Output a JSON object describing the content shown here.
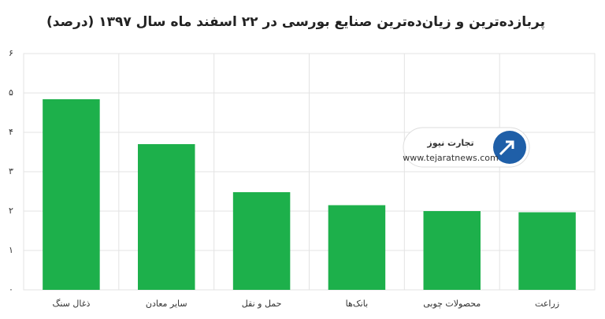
{
  "chart_data": {
    "type": "bar",
    "title": "پربازده‌ترین و زیان‌ده‌ترین صنایع بورسی در ۲۲ اسفند ماه سال ۱۳۹۷ (درصد)",
    "categories": [
      "ذغال سنگ",
      "سایر معادن",
      "حمل و نقل",
      "بانک‌ها",
      "محصولات چوبی",
      "زراعت"
    ],
    "values": [
      4.84,
      3.7,
      2.48,
      2.15,
      2.0,
      1.97
    ],
    "color": "#1db04b",
    "ylim": [
      0,
      6
    ],
    "yticks": [
      {
        "value": 0,
        "label": "۰"
      },
      {
        "value": 1,
        "label": "۱"
      },
      {
        "value": 2,
        "label": "۲"
      },
      {
        "value": 3,
        "label": "۳"
      },
      {
        "value": 4,
        "label": "۴"
      },
      {
        "value": 5,
        "label": "۵"
      },
      {
        "value": 6,
        "label": "۶"
      }
    ],
    "grid": true
  },
  "watermark": {
    "brand": "تجارت نیوز",
    "url": "www.tejaratnews.com"
  }
}
